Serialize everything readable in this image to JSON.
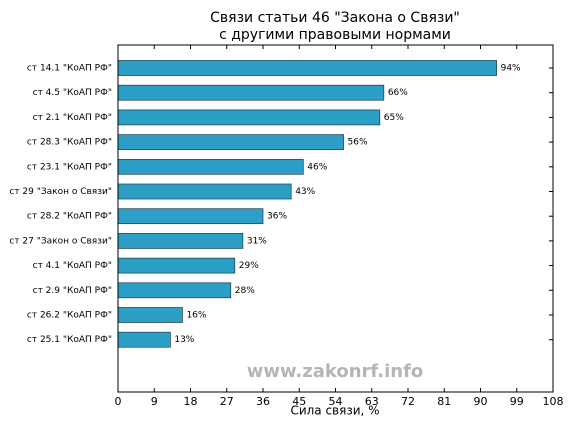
{
  "chart_data": {
    "type": "barh",
    "title": "Связи статьи 46 \"Закона о Связи\"",
    "subtitle": "с другими правовыми нормами",
    "xlabel": "Сила связи, %",
    "annotation": "www.zakonrf.info",
    "categories": [
      "ст 14.1 \"КоАП РФ\"",
      "ст 4.5 \"КоАП РФ\"",
      "ст 2.1 \"КоАП РФ\"",
      "ст 28.3 \"КоАП РФ\"",
      "ст 23.1 \"КоАП РФ\"",
      "ст 29 \"Закон о Связи\"",
      "ст 28.2 \"КоАП РФ\"",
      "ст 27 \"Закон о Связи\"",
      "ст 4.1 \"КоАП РФ\"",
      "ст 2.9 \"КоАП РФ\"",
      "ст 26.2 \"КоАП РФ\"",
      "ст 25.1 \"КоАП РФ\""
    ],
    "values": [
      94,
      66,
      65,
      56,
      46,
      43,
      36,
      31,
      29,
      28,
      16,
      13
    ],
    "value_labels": [
      "94%",
      "66%",
      "65%",
      "56%",
      "46%",
      "43%",
      "36%",
      "31%",
      "29%",
      "28%",
      "16%",
      "13%"
    ],
    "color": "#2b9fc5",
    "xlim": [
      0,
      108
    ],
    "xticks": [
      0,
      9,
      18,
      27,
      36,
      45,
      54,
      63,
      72,
      81,
      90,
      99,
      108
    ]
  }
}
